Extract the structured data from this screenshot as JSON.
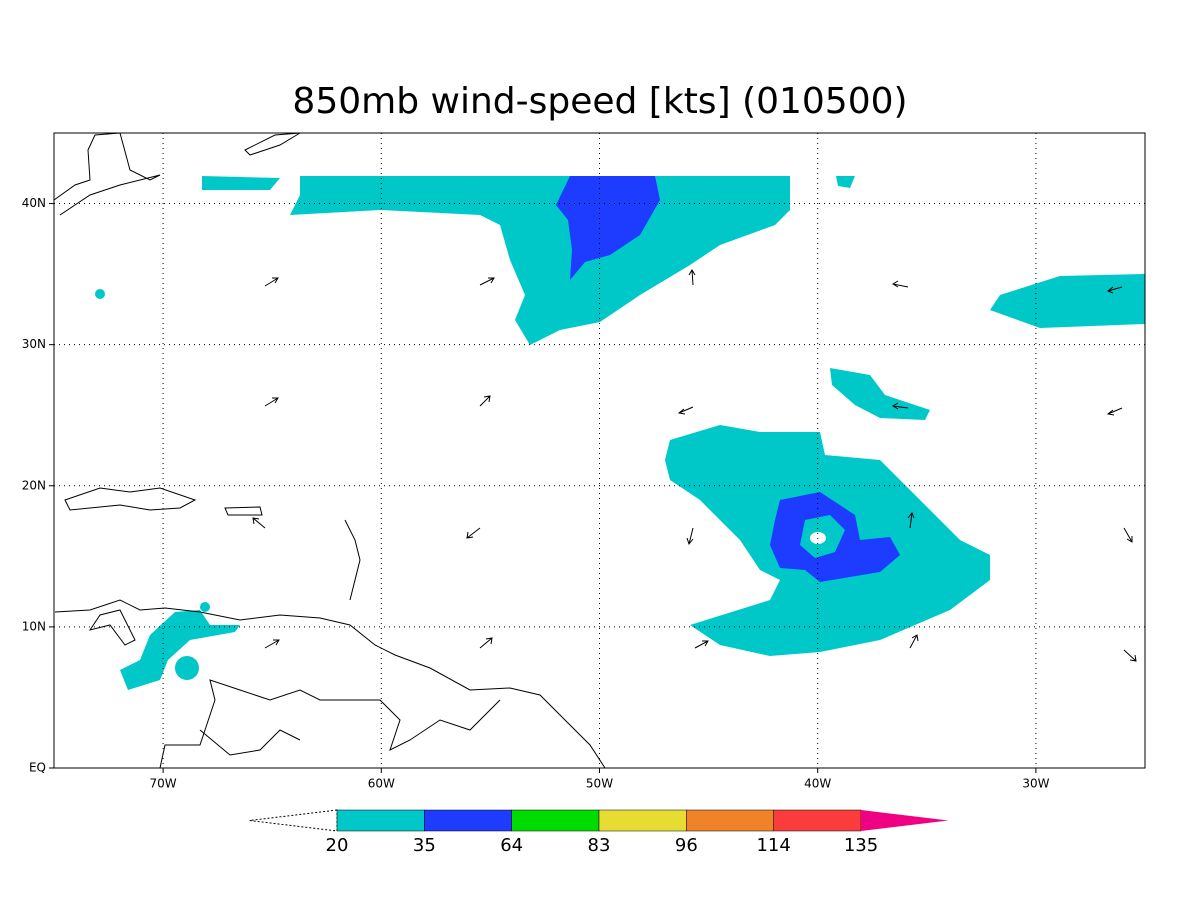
{
  "map": {
    "title": "850mb wind-speed [kts] (010500)",
    "xlim": [
      -75,
      -25
    ],
    "ylim": [
      0,
      45
    ],
    "lon_ticks": [
      {
        "value": -70,
        "label": "70W"
      },
      {
        "value": -60,
        "label": "60W"
      },
      {
        "value": -50,
        "label": "50W"
      },
      {
        "value": -40,
        "label": "40W"
      },
      {
        "value": -30,
        "label": "30W"
      }
    ],
    "lat_ticks": [
      {
        "value": 0,
        "label": "EQ"
      },
      {
        "value": 10,
        "label": "10N"
      },
      {
        "value": 20,
        "label": "20N"
      },
      {
        "value": 30,
        "label": "30N"
      },
      {
        "value": 40,
        "label": "40N"
      }
    ],
    "grid": true,
    "colorbar": {
      "levels": [
        20,
        35,
        64,
        83,
        96,
        114,
        135
      ],
      "colors": [
        "#ffffff",
        "#00c8c8",
        "#1e3cff",
        "#00dc00",
        "#e6dc32",
        "#f08228",
        "#fa3c3c",
        "#f00082"
      ]
    }
  }
}
